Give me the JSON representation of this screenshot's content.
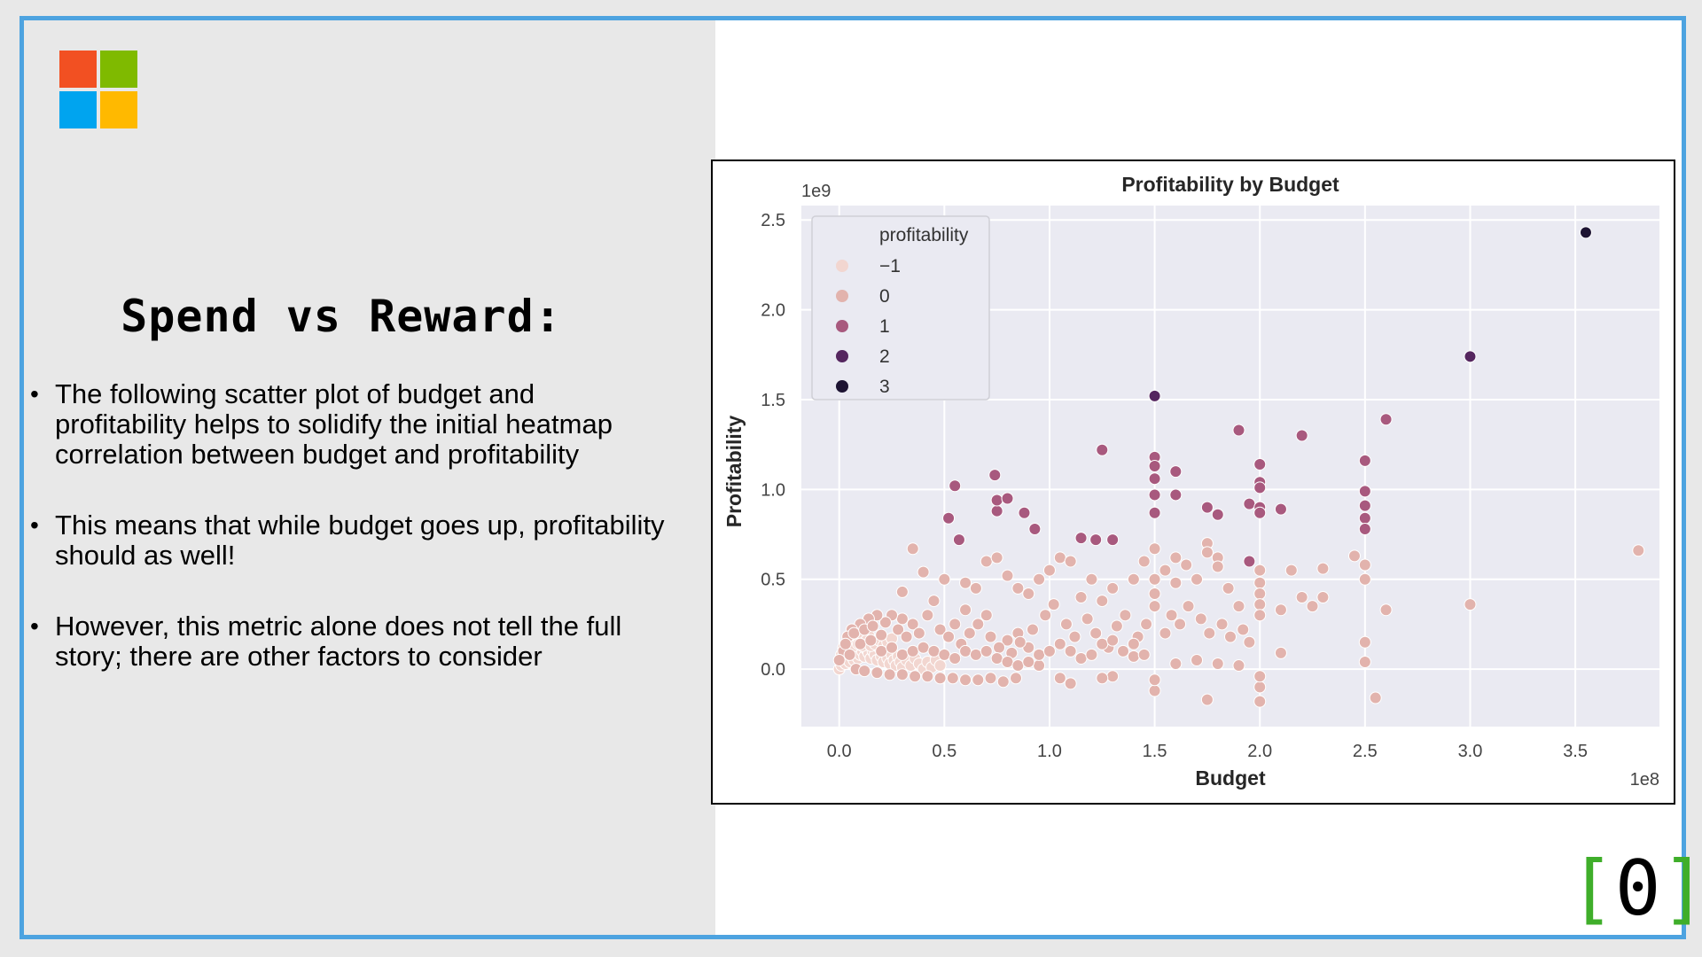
{
  "slide": {
    "title": "Spend vs Reward:",
    "bullets": [
      "The following scatter plot of budget and profitability helps to solidify the initial heatmap correlation between budget and profitability",
      "This means that while budget goes up, profitability should as well!",
      "However, this metric alone does not tell the full story; there are other factors to consider"
    ],
    "bullet_symbol": "•",
    "logo": {
      "icon": "microsoft-logo-icon",
      "colors": [
        "#f25022",
        "#7fba00",
        "#00a4ef",
        "#ffb900"
      ]
    },
    "brand_mark": {
      "open": "[",
      "digit": "0",
      "close": "]"
    },
    "colors": {
      "frame": "#4da3e0",
      "left_bg": "#e8e8e8",
      "brand_green": "#3fae2a"
    }
  },
  "chart_data": {
    "type": "scatter",
    "title": "Profitability by Budget",
    "xlabel": "Budget",
    "ylabel": "Profitability",
    "x_offset_label": "1e8",
    "y_offset_label": "1e9",
    "xlim": [
      -0.18,
      3.9
    ],
    "ylim": [
      -0.32,
      2.58
    ],
    "x_ticks": [
      0.0,
      0.5,
      1.0,
      1.5,
      2.0,
      2.5,
      3.0,
      3.5
    ],
    "y_ticks": [
      0.0,
      0.5,
      1.0,
      1.5,
      2.0,
      2.5
    ],
    "x_tick_labels": [
      "0.0",
      "0.5",
      "1.0",
      "1.5",
      "2.0",
      "2.5",
      "3.0",
      "3.5"
    ],
    "y_tick_labels": [
      "0.0",
      "0.5",
      "1.0",
      "1.5",
      "2.0",
      "2.5"
    ],
    "grid": true,
    "legend": {
      "title": "profitability",
      "placement": "top-left",
      "entries": [
        {
          "label": "−1",
          "color": "#f2d6d0"
        },
        {
          "label": "0",
          "color": "#e2b3ad"
        },
        {
          "label": "1",
          "color": "#a8597e"
        },
        {
          "label": "2",
          "color": "#55265f"
        },
        {
          "label": "3",
          "color": "#1e1433"
        }
      ]
    },
    "series": [
      {
        "name": "1",
        "color": "#a8597e",
        "points": [
          [
            0.55,
            1.02
          ],
          [
            0.52,
            0.84
          ],
          [
            0.57,
            0.72
          ],
          [
            0.74,
            1.08
          ],
          [
            0.75,
            0.88
          ],
          [
            0.75,
            0.94
          ],
          [
            0.8,
            0.95
          ],
          [
            0.88,
            0.87
          ],
          [
            0.93,
            0.78
          ],
          [
            1.25,
            1.22
          ],
          [
            1.5,
            1.18
          ],
          [
            1.5,
            1.13
          ],
          [
            1.5,
            1.06
          ],
          [
            1.5,
            0.97
          ],
          [
            1.5,
            0.87
          ],
          [
            1.6,
            1.1
          ],
          [
            1.6,
            0.97
          ],
          [
            1.75,
            0.9
          ],
          [
            1.8,
            0.86
          ],
          [
            1.9,
            1.33
          ],
          [
            1.95,
            0.92
          ],
          [
            2.0,
            1.14
          ],
          [
            2.0,
            1.04
          ],
          [
            2.0,
            1.01
          ],
          [
            2.0,
            0.9
          ],
          [
            2.0,
            0.87
          ],
          [
            2.1,
            0.89
          ],
          [
            2.2,
            1.3
          ],
          [
            2.5,
            1.16
          ],
          [
            2.5,
            0.99
          ],
          [
            2.5,
            0.91
          ],
          [
            2.5,
            0.84
          ],
          [
            2.5,
            0.78
          ],
          [
            2.6,
            1.39
          ],
          [
            1.22,
            0.72
          ],
          [
            1.3,
            0.72
          ],
          [
            1.15,
            0.73
          ],
          [
            1.95,
            0.6
          ]
        ]
      },
      {
        "name": "2",
        "color": "#55265f",
        "points": [
          [
            1.5,
            1.52
          ],
          [
            3.0,
            1.74
          ]
        ]
      },
      {
        "name": "3",
        "color": "#1e1433",
        "points": [
          [
            3.55,
            2.43
          ]
        ]
      },
      {
        "name": "0",
        "color": "#e2b3ad",
        "points": [
          [
            0.35,
            0.67
          ],
          [
            0.4,
            0.54
          ],
          [
            0.3,
            0.43
          ],
          [
            0.5,
            0.5
          ],
          [
            0.6,
            0.48
          ],
          [
            0.65,
            0.45
          ],
          [
            0.7,
            0.6
          ],
          [
            0.75,
            0.62
          ],
          [
            0.8,
            0.52
          ],
          [
            0.85,
            0.45
          ],
          [
            0.9,
            0.42
          ],
          [
            0.95,
            0.5
          ],
          [
            1.0,
            0.55
          ],
          [
            1.05,
            0.62
          ],
          [
            1.1,
            0.6
          ],
          [
            1.15,
            0.4
          ],
          [
            1.2,
            0.5
          ],
          [
            1.25,
            0.38
          ],
          [
            1.3,
            0.45
          ],
          [
            1.4,
            0.5
          ],
          [
            1.45,
            0.6
          ],
          [
            1.5,
            0.67
          ],
          [
            1.5,
            0.5
          ],
          [
            1.5,
            0.42
          ],
          [
            1.5,
            0.35
          ],
          [
            1.55,
            0.55
          ],
          [
            1.6,
            0.62
          ],
          [
            1.6,
            0.48
          ],
          [
            1.65,
            0.58
          ],
          [
            1.7,
            0.5
          ],
          [
            1.75,
            0.7
          ],
          [
            1.75,
            0.65
          ],
          [
            1.8,
            0.62
          ],
          [
            1.8,
            0.57
          ],
          [
            1.85,
            0.45
          ],
          [
            1.9,
            0.35
          ],
          [
            2.0,
            0.55
          ],
          [
            2.0,
            0.48
          ],
          [
            2.0,
            0.42
          ],
          [
            2.0,
            0.36
          ],
          [
            2.0,
            0.3
          ],
          [
            2.1,
            0.33
          ],
          [
            2.15,
            0.55
          ],
          [
            2.2,
            0.4
          ],
          [
            2.3,
            0.4
          ],
          [
            2.3,
            0.56
          ],
          [
            2.25,
            0.35
          ],
          [
            2.5,
            0.58
          ],
          [
            2.5,
            0.5
          ],
          [
            2.45,
            0.63
          ],
          [
            2.6,
            0.33
          ],
          [
            3.0,
            0.36
          ],
          [
            3.8,
            0.66
          ],
          [
            2.5,
            0.15
          ],
          [
            2.5,
            0.04
          ],
          [
            2.55,
            -0.16
          ],
          [
            1.5,
            -0.12
          ],
          [
            1.5,
            -0.06
          ],
          [
            1.75,
            -0.17
          ],
          [
            2.0,
            -0.18
          ],
          [
            2.0,
            -0.1
          ],
          [
            2.0,
            -0.04
          ],
          [
            2.1,
            0.09
          ],
          [
            1.7,
            0.05
          ],
          [
            1.8,
            0.03
          ],
          [
            1.9,
            0.02
          ],
          [
            1.6,
            0.03
          ],
          [
            1.4,
            0.07
          ],
          [
            1.3,
            -0.04
          ],
          [
            1.25,
            -0.05
          ],
          [
            1.1,
            -0.08
          ],
          [
            1.05,
            -0.05
          ],
          [
            0.95,
            0.02
          ],
          [
            0.9,
            0.12
          ],
          [
            0.85,
            0.2
          ],
          [
            0.8,
            0.16
          ],
          [
            0.7,
            0.3
          ],
          [
            0.6,
            0.33
          ],
          [
            0.55,
            0.25
          ],
          [
            0.45,
            0.38
          ],
          [
            0.42,
            0.3
          ],
          [
            0.35,
            0.25
          ],
          [
            0.3,
            0.28
          ],
          [
            0.25,
            0.3
          ],
          [
            0.22,
            0.26
          ],
          [
            0.18,
            0.3
          ],
          [
            0.14,
            0.28
          ],
          [
            0.1,
            0.25
          ],
          [
            0.06,
            0.22
          ],
          [
            0.04,
            0.18
          ],
          [
            0.02,
            0.1
          ],
          [
            0.0,
            0.05
          ],
          [
            0.05,
            0.08
          ],
          [
            0.1,
            0.14
          ],
          [
            0.15,
            0.16
          ],
          [
            0.2,
            0.19
          ],
          [
            0.28,
            0.22
          ],
          [
            0.32,
            0.18
          ],
          [
            0.38,
            0.2
          ],
          [
            0.48,
            0.22
          ],
          [
            0.52,
            0.18
          ],
          [
            0.58,
            0.14
          ],
          [
            0.62,
            0.2
          ],
          [
            0.66,
            0.25
          ],
          [
            0.72,
            0.18
          ],
          [
            0.76,
            0.12
          ],
          [
            0.82,
            0.09
          ],
          [
            0.86,
            0.15
          ],
          [
            0.92,
            0.22
          ],
          [
            0.98,
            0.3
          ],
          [
            1.02,
            0.36
          ],
          [
            1.08,
            0.25
          ],
          [
            1.12,
            0.18
          ],
          [
            1.18,
            0.28
          ],
          [
            1.22,
            0.2
          ],
          [
            1.28,
            0.12
          ],
          [
            1.32,
            0.24
          ],
          [
            1.36,
            0.3
          ],
          [
            1.42,
            0.18
          ],
          [
            1.46,
            0.25
          ],
          [
            1.55,
            0.2
          ],
          [
            1.58,
            0.3
          ],
          [
            1.62,
            0.25
          ],
          [
            1.66,
            0.35
          ],
          [
            1.72,
            0.28
          ],
          [
            1.76,
            0.2
          ],
          [
            1.82,
            0.25
          ],
          [
            1.86,
            0.18
          ],
          [
            1.92,
            0.22
          ],
          [
            1.95,
            0.15
          ],
          [
            0.08,
            0.0
          ],
          [
            0.12,
            -0.01
          ],
          [
            0.18,
            -0.02
          ],
          [
            0.24,
            -0.03
          ],
          [
            0.3,
            -0.03
          ],
          [
            0.36,
            -0.04
          ],
          [
            0.42,
            -0.04
          ],
          [
            0.48,
            -0.05
          ],
          [
            0.54,
            -0.05
          ],
          [
            0.6,
            -0.06
          ],
          [
            0.66,
            -0.06
          ],
          [
            0.72,
            -0.05
          ],
          [
            0.78,
            -0.07
          ],
          [
            0.84,
            -0.05
          ],
          [
            0.03,
            0.14
          ],
          [
            0.07,
            0.2
          ],
          [
            0.12,
            0.22
          ],
          [
            0.16,
            0.24
          ],
          [
            0.2,
            0.1
          ],
          [
            0.25,
            0.12
          ],
          [
            0.3,
            0.08
          ],
          [
            0.35,
            0.1
          ],
          [
            0.4,
            0.12
          ],
          [
            0.45,
            0.1
          ],
          [
            0.5,
            0.08
          ],
          [
            0.55,
            0.06
          ],
          [
            0.6,
            0.1
          ],
          [
            0.65,
            0.08
          ],
          [
            0.7,
            0.1
          ],
          [
            0.75,
            0.06
          ],
          [
            0.8,
            0.04
          ],
          [
            0.85,
            0.02
          ],
          [
            0.9,
            0.04
          ],
          [
            0.95,
            0.08
          ],
          [
            1.0,
            0.1
          ],
          [
            1.05,
            0.14
          ],
          [
            1.1,
            0.1
          ],
          [
            1.15,
            0.06
          ],
          [
            1.2,
            0.08
          ],
          [
            1.25,
            0.14
          ],
          [
            1.3,
            0.16
          ],
          [
            1.35,
            0.1
          ],
          [
            1.4,
            0.14
          ],
          [
            1.45,
            0.08
          ]
        ]
      },
      {
        "name": "−1",
        "color": "#f2d6d0",
        "points": [
          [
            0.0,
            0.0
          ],
          [
            0.01,
            0.02
          ],
          [
            0.02,
            0.05
          ],
          [
            0.03,
            0.03
          ],
          [
            0.04,
            0.06
          ],
          [
            0.05,
            0.04
          ],
          [
            0.06,
            0.07
          ],
          [
            0.07,
            0.05
          ],
          [
            0.08,
            0.09
          ],
          [
            0.09,
            0.06
          ],
          [
            0.1,
            0.08
          ],
          [
            0.11,
            0.1
          ],
          [
            0.12,
            0.07
          ],
          [
            0.13,
            0.11
          ],
          [
            0.14,
            0.09
          ],
          [
            0.15,
            0.06
          ],
          [
            0.16,
            0.1
          ],
          [
            0.17,
            0.08
          ],
          [
            0.18,
            0.05
          ],
          [
            0.19,
            0.12
          ],
          [
            0.2,
            0.07
          ],
          [
            0.21,
            0.04
          ],
          [
            0.22,
            0.09
          ],
          [
            0.23,
            0.06
          ],
          [
            0.24,
            0.03
          ],
          [
            0.25,
            0.08
          ],
          [
            0.26,
            0.05
          ],
          [
            0.27,
            0.02
          ],
          [
            0.28,
            0.07
          ],
          [
            0.29,
            0.04
          ],
          [
            0.3,
            0.01
          ],
          [
            0.32,
            0.05
          ],
          [
            0.34,
            0.02
          ],
          [
            0.36,
            0.06
          ],
          [
            0.38,
            0.03
          ],
          [
            0.4,
            0.0
          ],
          [
            0.42,
            0.04
          ],
          [
            0.44,
            0.01
          ],
          [
            0.46,
            0.05
          ],
          [
            0.48,
            0.02
          ],
          [
            0.02,
            0.12
          ],
          [
            0.04,
            0.15
          ],
          [
            0.06,
            0.13
          ],
          [
            0.08,
            0.16
          ],
          [
            0.1,
            0.18
          ],
          [
            0.12,
            0.15
          ],
          [
            0.14,
            0.19
          ],
          [
            0.03,
            0.09
          ],
          [
            0.05,
            0.11
          ],
          [
            0.07,
            0.13
          ],
          [
            0.09,
            0.14
          ],
          [
            0.11,
            0.13
          ],
          [
            0.13,
            0.16
          ],
          [
            0.15,
            0.13
          ],
          [
            0.17,
            0.14
          ],
          [
            0.19,
            0.16
          ],
          [
            0.21,
            0.13
          ],
          [
            0.23,
            0.15
          ],
          [
            0.25,
            0.17
          ],
          [
            0.01,
            0.08
          ]
        ]
      }
    ]
  }
}
